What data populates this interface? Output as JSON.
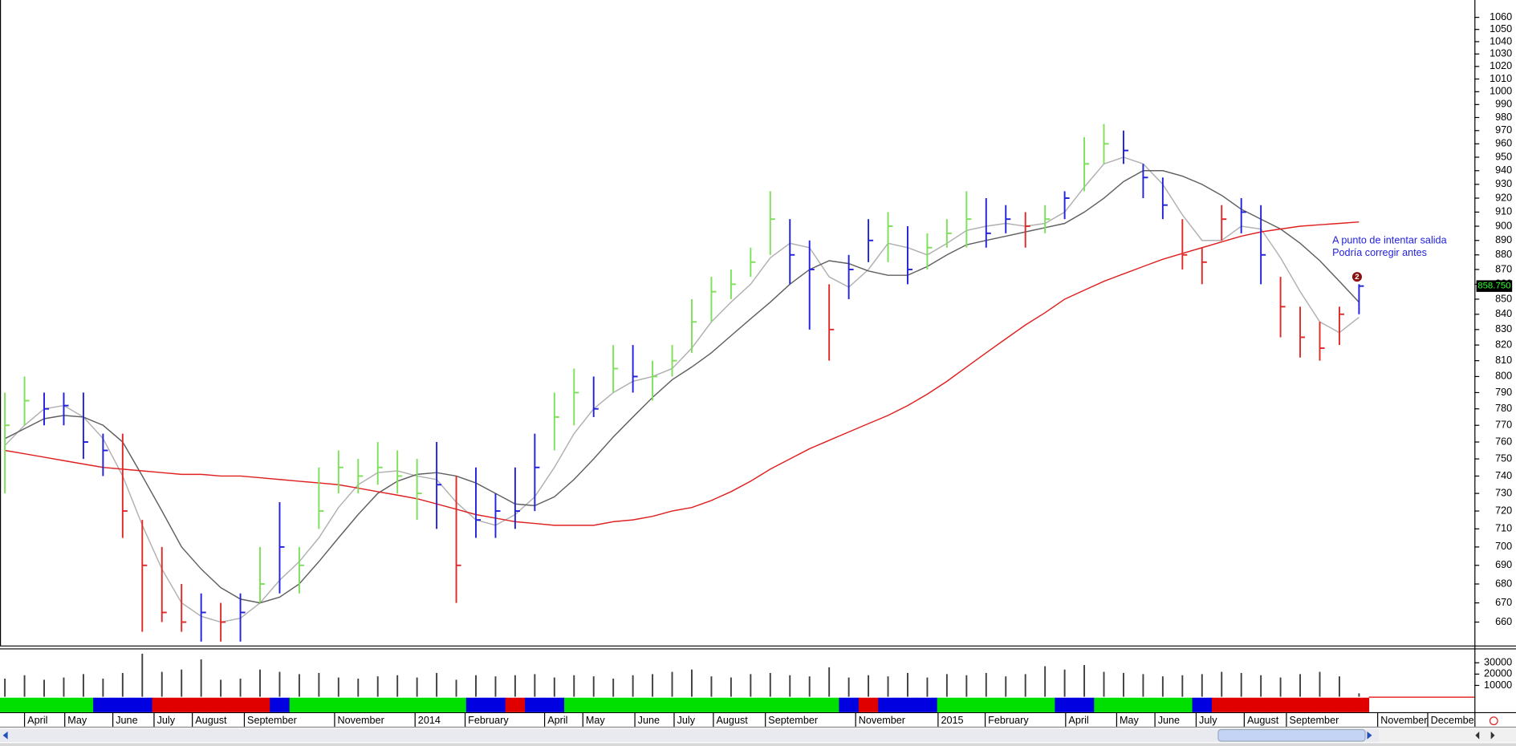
{
  "chart_data": {
    "type": "ohlc",
    "log_scale": true,
    "xlim": [
      -0.25,
      74.88
    ],
    "ylim": [
      648,
      1074.5
    ],
    "yticks": [
      660,
      670,
      680,
      690,
      700,
      710,
      720,
      730,
      740,
      750,
      760,
      770,
      780,
      790,
      800,
      810,
      820,
      830,
      840,
      850,
      860,
      870,
      880,
      890,
      900,
      910,
      920,
      930,
      940,
      950,
      960,
      970,
      980,
      990,
      1000,
      1010,
      1020,
      1030,
      1040,
      1050,
      1060
    ],
    "xticks": [
      {
        "value": 1.0,
        "label": "April"
      },
      {
        "value": 3.05,
        "label": "May"
      },
      {
        "value": 5.5,
        "label": "June"
      },
      {
        "value": 7.6,
        "label": "July"
      },
      {
        "value": 9.55,
        "label": "August"
      },
      {
        "value": 12.2,
        "label": "September"
      },
      {
        "value": 16.8,
        "label": "November"
      },
      {
        "value": 20.9,
        "label": "2014"
      },
      {
        "value": 23.45,
        "label": "February"
      },
      {
        "value": 27.5,
        "label": "April"
      },
      {
        "value": 29.45,
        "label": "May"
      },
      {
        "value": 32.1,
        "label": "June"
      },
      {
        "value": 34.1,
        "label": "July"
      },
      {
        "value": 36.1,
        "label": "August"
      },
      {
        "value": 38.75,
        "label": "September"
      },
      {
        "value": 43.35,
        "label": "November"
      },
      {
        "value": 47.55,
        "label": "2015"
      },
      {
        "value": 49.95,
        "label": "February"
      },
      {
        "value": 54.05,
        "label": "April"
      },
      {
        "value": 56.65,
        "label": "May"
      },
      {
        "value": 58.6,
        "label": "June"
      },
      {
        "value": 60.7,
        "label": "July"
      },
      {
        "value": 63.15,
        "label": "August"
      },
      {
        "value": 65.3,
        "label": "September"
      },
      {
        "value": 69.95,
        "label": "November"
      },
      {
        "value": 72.5,
        "label": "December"
      }
    ],
    "bars": {
      "high": [
        790,
        800,
        790,
        790,
        790,
        765,
        765,
        715,
        700,
        680,
        675,
        670,
        675,
        700,
        725,
        700,
        745,
        755,
        750,
        760,
        755,
        750,
        760,
        740,
        745,
        730,
        745,
        765,
        790,
        805,
        800,
        820,
        820,
        810,
        820,
        850,
        865,
        870,
        885,
        925,
        905,
        890,
        860,
        880,
        905,
        910,
        900,
        895,
        905,
        925,
        920,
        915,
        910,
        915,
        925,
        965,
        975,
        970,
        945,
        935,
        905,
        885,
        915,
        920,
        915,
        865,
        845,
        835,
        845,
        860
      ],
      "low": [
        730,
        770,
        770,
        770,
        750,
        740,
        705,
        655,
        660,
        655,
        650,
        650,
        650,
        670,
        675,
        675,
        710,
        730,
        730,
        735,
        730,
        715,
        710,
        670,
        705,
        705,
        710,
        720,
        755,
        770,
        775,
        790,
        790,
        785,
        800,
        815,
        835,
        850,
        865,
        880,
        860,
        830,
        810,
        850,
        875,
        875,
        860,
        870,
        885,
        885,
        885,
        895,
        885,
        895,
        905,
        925,
        945,
        945,
        920,
        905,
        870,
        860,
        890,
        895,
        860,
        825,
        812,
        810,
        820,
        840
      ],
      "close": [
        770,
        785,
        780,
        782,
        760,
        755,
        720,
        690,
        665,
        660,
        665,
        660,
        665,
        680,
        700,
        690,
        720,
        745,
        740,
        745,
        740,
        730,
        735,
        690,
        715,
        720,
        720,
        745,
        775,
        790,
        780,
        805,
        800,
        800,
        810,
        835,
        855,
        860,
        875,
        905,
        880,
        870,
        830,
        870,
        890,
        900,
        870,
        885,
        895,
        905,
        895,
        905,
        900,
        905,
        920,
        945,
        960,
        955,
        935,
        915,
        880,
        875,
        905,
        910,
        880,
        845,
        825,
        818,
        840,
        858.75
      ],
      "colors": [
        "#7ee05a",
        "#7ee05a",
        "#2222dd",
        "#2222dd",
        "#2222dd",
        "#2222dd",
        "#e02a2a",
        "#e02a2a",
        "#e02a2a",
        "#e02a2a",
        "#2222dd",
        "#e02a2a",
        "#2222dd",
        "#7ee05a",
        "#2222dd",
        "#7ee05a",
        "#7ee05a",
        "#7ee05a",
        "#7ee05a",
        "#7ee05a",
        "#7ee05a",
        "#7ee05a",
        "#2222dd",
        "#e02a2a",
        "#2222dd",
        "#2222dd",
        "#2222dd",
        "#2222dd",
        "#7ee05a",
        "#7ee05a",
        "#2222dd",
        "#7ee05a",
        "#2222dd",
        "#7ee05a",
        "#7ee05a",
        "#7ee05a",
        "#7ee05a",
        "#7ee05a",
        "#7ee05a",
        "#7ee05a",
        "#2222dd",
        "#2222dd",
        "#e02a2a",
        "#2222dd",
        "#2222dd",
        "#7ee05a",
        "#2222dd",
        "#7ee05a",
        "#7ee05a",
        "#7ee05a",
        "#2222dd",
        "#2222dd",
        "#e02a2a",
        "#7ee05a",
        "#2222dd",
        "#7ee05a",
        "#7ee05a",
        "#2222dd",
        "#2222dd",
        "#2222dd",
        "#e02a2a",
        "#e02a2a",
        "#e02a2a",
        "#2222dd",
        "#2222dd",
        "#e02a2a",
        "#e02a2a",
        "#e02a2a",
        "#e02a2a",
        "#2222dd"
      ]
    },
    "lines": [
      {
        "color": "#b0b0b0",
        "values": [
          758,
          770,
          780,
          782,
          775,
          762,
          740,
          712,
          688,
          670,
          663,
          660,
          662,
          670,
          682,
          692,
          705,
          722,
          735,
          742,
          743,
          740,
          738,
          725,
          715,
          712,
          718,
          728,
          745,
          765,
          780,
          790,
          797,
          800,
          805,
          818,
          835,
          848,
          860,
          878,
          888,
          885,
          865,
          858,
          870,
          888,
          885,
          880,
          888,
          897,
          900,
          902,
          900,
          902,
          910,
          928,
          945,
          950,
          945,
          930,
          908,
          890,
          890,
          900,
          898,
          878,
          855,
          835,
          828,
          838
        ]
      },
      {
        "color": "#606060",
        "values": [
          762,
          768,
          774,
          776,
          775,
          770,
          760,
          740,
          720,
          700,
          688,
          678,
          672,
          670,
          673,
          680,
          692,
          705,
          718,
          730,
          737,
          741,
          742,
          740,
          736,
          730,
          724,
          723,
          728,
          738,
          750,
          763,
          775,
          787,
          798,
          806,
          815,
          826,
          837,
          848,
          860,
          870,
          876,
          874,
          869,
          866,
          866,
          872,
          880,
          887,
          890,
          893,
          896,
          899,
          902,
          910,
          920,
          932,
          940,
          940,
          936,
          930,
          922,
          912,
          905,
          898,
          888,
          876,
          862,
          848
        ]
      },
      {
        "color": "#e02020",
        "values": [
          755,
          753,
          751,
          749,
          747,
          745,
          744,
          743,
          742,
          741,
          741,
          740,
          740,
          739,
          738,
          737,
          736,
          735,
          733,
          731,
          729,
          727,
          724,
          721,
          718,
          716,
          714,
          713,
          712,
          712,
          712,
          714,
          715,
          717,
          720,
          722,
          726,
          731,
          737,
          744,
          750,
          756,
          761,
          766,
          771,
          776,
          782,
          789,
          797,
          806,
          815,
          824,
          833,
          841,
          850,
          856,
          862,
          867,
          872,
          877,
          881,
          885,
          889,
          893,
          896,
          898,
          900,
          901,
          902,
          903
        ]
      }
    ],
    "last_price": {
      "value": 858.75,
      "label": "858.750"
    },
    "marker": {
      "label": "2",
      "x": 68.9,
      "y": 865
    },
    "annotations": [
      {
        "text": "A punto de intentar salida"
      },
      {
        "text": "Podría corregir antes"
      }
    ],
    "volume": {
      "color": "#404040",
      "ylim": [
        0,
        39300
      ],
      "yticks": [
        10000,
        20000,
        30000
      ],
      "values": [
        16000,
        19000,
        15000,
        17000,
        20000,
        16000,
        21000,
        38000,
        22000,
        24000,
        33000,
        15000,
        16000,
        24000,
        22000,
        20000,
        21000,
        17000,
        16000,
        18000,
        19000,
        17000,
        21000,
        15000,
        19000,
        18000,
        19000,
        20000,
        17000,
        19000,
        18000,
        16000,
        19000,
        20000,
        22000,
        24000,
        18000,
        17000,
        20000,
        21000,
        19000,
        18000,
        26000,
        17000,
        19000,
        18000,
        21000,
        17000,
        20000,
        19000,
        21000,
        18000,
        20000,
        27000,
        24000,
        28000,
        22000,
        21000,
        20000,
        18000,
        19000,
        20000,
        22000,
        21000,
        19000,
        17000,
        20000,
        22000,
        18000,
        3000
      ]
    },
    "strip_colors": [
      "#00e000",
      "#00e000",
      "#00e000",
      "#00e000",
      "#00e000",
      "#0000e0",
      "#0000e0",
      "#0000e0",
      "#e00000",
      "#e00000",
      "#e00000",
      "#e00000",
      "#e00000",
      "#e00000",
      "#0000e0",
      "#00e000",
      "#00e000",
      "#00e000",
      "#00e000",
      "#00e000",
      "#00e000",
      "#00e000",
      "#00e000",
      "#00e000",
      "#0000e0",
      "#0000e0",
      "#e00000",
      "#0000e0",
      "#0000e0",
      "#00e000",
      "#00e000",
      "#00e000",
      "#00e000",
      "#00e000",
      "#00e000",
      "#00e000",
      "#00e000",
      "#00e000",
      "#00e000",
      "#00e000",
      "#00e000",
      "#00e000",
      "#00e000",
      "#0000e0",
      "#e00000",
      "#0000e0",
      "#0000e0",
      "#0000e0",
      "#00e000",
      "#00e000",
      "#00e000",
      "#00e000",
      "#00e000",
      "#00e000",
      "#0000e0",
      "#0000e0",
      "#00e000",
      "#00e000",
      "#00e000",
      "#00e000",
      "#00e000",
      "#0000e0",
      "#e00000",
      "#e00000",
      "#e00000",
      "#e00000",
      "#e00000",
      "#e00000",
      "#e00000",
      "#e00000"
    ]
  }
}
